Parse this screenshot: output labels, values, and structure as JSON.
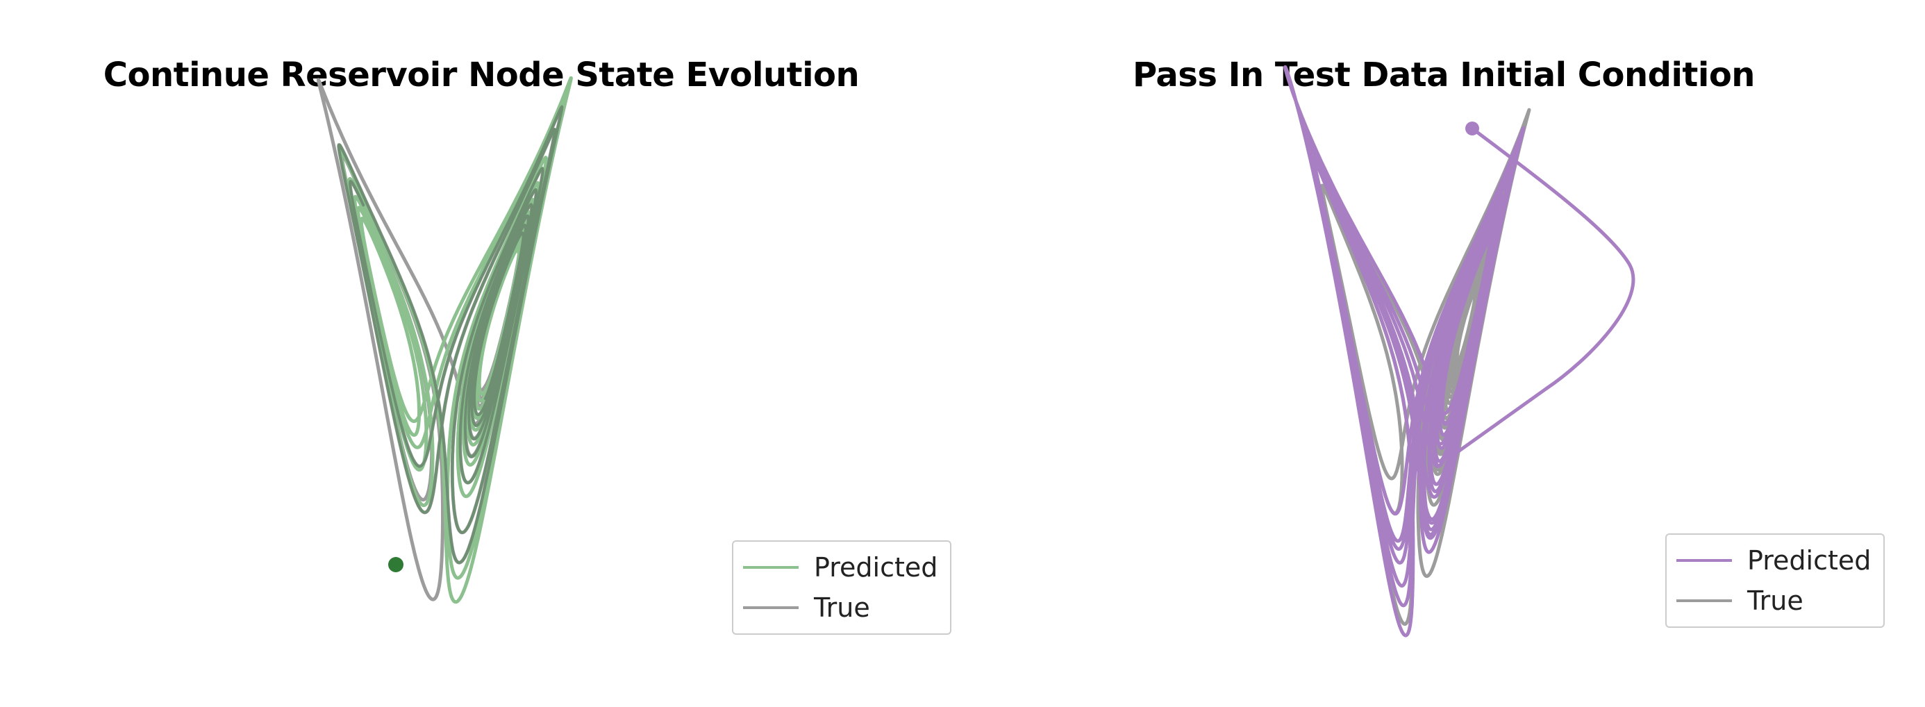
{
  "colors": {
    "predicted_left": "#8cc08f",
    "predicted_right": "#a97fc4",
    "true": "#9c9c9c",
    "dark_green": "#2f7a34"
  },
  "chart_data": [
    {
      "type": "line",
      "title": "Continue Reservoir Node State Evolution",
      "axes_visible": false,
      "grid": false,
      "legend": {
        "position": "lower-right",
        "entries": [
          "Predicted",
          "True"
        ]
      },
      "series": [
        {
          "name": "Predicted",
          "color": "#8cc08f"
        },
        {
          "name": "True",
          "color": "#9c9c9c"
        }
      ],
      "markers": [
        {
          "color": "#2f7a34"
        }
      ]
    },
    {
      "type": "line",
      "title": "Pass In Test Data Initial Condition",
      "axes_visible": false,
      "grid": false,
      "legend": {
        "position": "lower-right",
        "entries": [
          "Predicted",
          "True"
        ]
      },
      "series": [
        {
          "name": "Predicted",
          "color": "#a97fc4"
        },
        {
          "name": "True",
          "color": "#9c9c9c"
        }
      ],
      "markers": [
        {
          "color": "#a97fc4"
        }
      ]
    }
  ]
}
